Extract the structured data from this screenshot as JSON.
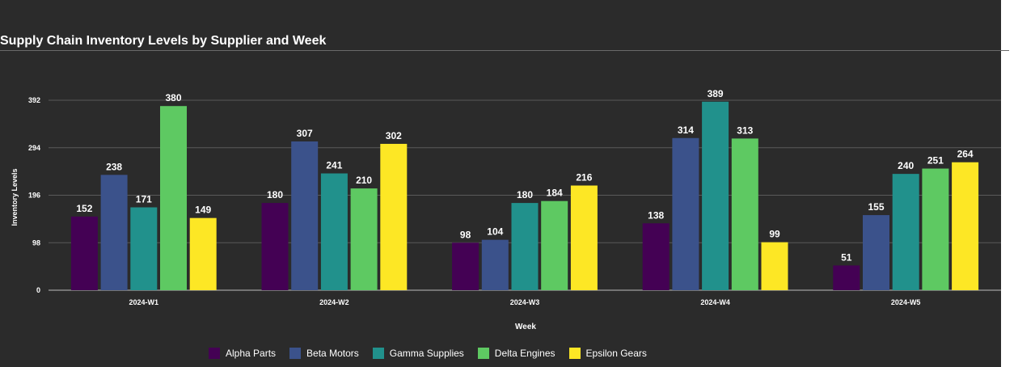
{
  "chart_data": {
    "type": "bar",
    "title": "Supply Chain Inventory Levels by Supplier and Week",
    "xlabel": "Week",
    "ylabel": "Inventory Levels",
    "categories": [
      "2024-W1",
      "2024-W2",
      "2024-W3",
      "2024-W4",
      "2024-W5"
    ],
    "series": [
      {
        "name": "Alpha Parts",
        "color": "#440154",
        "values": [
          152,
          180,
          98,
          138,
          51
        ]
      },
      {
        "name": "Beta Motors",
        "color": "#3b528b",
        "values": [
          238,
          307,
          104,
          314,
          155
        ]
      },
      {
        "name": "Gamma Supplies",
        "color": "#21918c",
        "values": [
          171,
          241,
          180,
          389,
          240
        ]
      },
      {
        "name": "Delta Engines",
        "color": "#5ec962",
        "values": [
          380,
          210,
          184,
          313,
          251
        ]
      },
      {
        "name": "Epsilon Gears",
        "color": "#fde725",
        "values": [
          149,
          302,
          216,
          99,
          264
        ]
      }
    ],
    "yticks": [
      0,
      98,
      196,
      294,
      392
    ],
    "ylim": [
      0,
      392
    ],
    "grid": true,
    "legend_position": "bottom",
    "data_labels": true
  },
  "colors": {
    "background": "#2b2b2b",
    "grid": "#5a5a5a",
    "text": "#ffffff"
  }
}
